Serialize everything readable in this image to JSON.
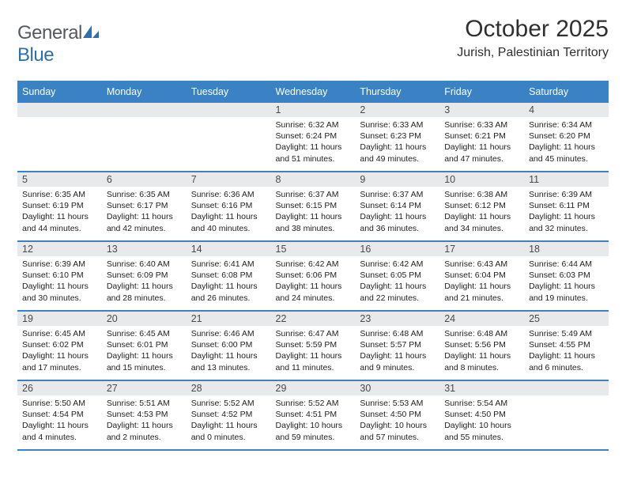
{
  "logo": {
    "text_general": "General",
    "text_blue": "Blue"
  },
  "title": "October 2025",
  "location": "Jurish, Palestinian Territory",
  "colors": {
    "header_bg": "#3b82c4",
    "header_text": "#ffffff",
    "daynum_bg": "#e8e9ea",
    "rule": "#3b82c4",
    "body_text": "#222222"
  },
  "weekdays": [
    "Sunday",
    "Monday",
    "Tuesday",
    "Wednesday",
    "Thursday",
    "Friday",
    "Saturday"
  ],
  "weeks": [
    [
      null,
      null,
      null,
      {
        "n": "1",
        "sr": "6:32 AM",
        "ss": "6:24 PM",
        "dl": "11 hours and 51 minutes."
      },
      {
        "n": "2",
        "sr": "6:33 AM",
        "ss": "6:23 PM",
        "dl": "11 hours and 49 minutes."
      },
      {
        "n": "3",
        "sr": "6:33 AM",
        "ss": "6:21 PM",
        "dl": "11 hours and 47 minutes."
      },
      {
        "n": "4",
        "sr": "6:34 AM",
        "ss": "6:20 PM",
        "dl": "11 hours and 45 minutes."
      }
    ],
    [
      {
        "n": "5",
        "sr": "6:35 AM",
        "ss": "6:19 PM",
        "dl": "11 hours and 44 minutes."
      },
      {
        "n": "6",
        "sr": "6:35 AM",
        "ss": "6:17 PM",
        "dl": "11 hours and 42 minutes."
      },
      {
        "n": "7",
        "sr": "6:36 AM",
        "ss": "6:16 PM",
        "dl": "11 hours and 40 minutes."
      },
      {
        "n": "8",
        "sr": "6:37 AM",
        "ss": "6:15 PM",
        "dl": "11 hours and 38 minutes."
      },
      {
        "n": "9",
        "sr": "6:37 AM",
        "ss": "6:14 PM",
        "dl": "11 hours and 36 minutes."
      },
      {
        "n": "10",
        "sr": "6:38 AM",
        "ss": "6:12 PM",
        "dl": "11 hours and 34 minutes."
      },
      {
        "n": "11",
        "sr": "6:39 AM",
        "ss": "6:11 PM",
        "dl": "11 hours and 32 minutes."
      }
    ],
    [
      {
        "n": "12",
        "sr": "6:39 AM",
        "ss": "6:10 PM",
        "dl": "11 hours and 30 minutes."
      },
      {
        "n": "13",
        "sr": "6:40 AM",
        "ss": "6:09 PM",
        "dl": "11 hours and 28 minutes."
      },
      {
        "n": "14",
        "sr": "6:41 AM",
        "ss": "6:08 PM",
        "dl": "11 hours and 26 minutes."
      },
      {
        "n": "15",
        "sr": "6:42 AM",
        "ss": "6:06 PM",
        "dl": "11 hours and 24 minutes."
      },
      {
        "n": "16",
        "sr": "6:42 AM",
        "ss": "6:05 PM",
        "dl": "11 hours and 22 minutes."
      },
      {
        "n": "17",
        "sr": "6:43 AM",
        "ss": "6:04 PM",
        "dl": "11 hours and 21 minutes."
      },
      {
        "n": "18",
        "sr": "6:44 AM",
        "ss": "6:03 PM",
        "dl": "11 hours and 19 minutes."
      }
    ],
    [
      {
        "n": "19",
        "sr": "6:45 AM",
        "ss": "6:02 PM",
        "dl": "11 hours and 17 minutes."
      },
      {
        "n": "20",
        "sr": "6:45 AM",
        "ss": "6:01 PM",
        "dl": "11 hours and 15 minutes."
      },
      {
        "n": "21",
        "sr": "6:46 AM",
        "ss": "6:00 PM",
        "dl": "11 hours and 13 minutes."
      },
      {
        "n": "22",
        "sr": "6:47 AM",
        "ss": "5:59 PM",
        "dl": "11 hours and 11 minutes."
      },
      {
        "n": "23",
        "sr": "6:48 AM",
        "ss": "5:57 PM",
        "dl": "11 hours and 9 minutes."
      },
      {
        "n": "24",
        "sr": "6:48 AM",
        "ss": "5:56 PM",
        "dl": "11 hours and 8 minutes."
      },
      {
        "n": "25",
        "sr": "5:49 AM",
        "ss": "4:55 PM",
        "dl": "11 hours and 6 minutes."
      }
    ],
    [
      {
        "n": "26",
        "sr": "5:50 AM",
        "ss": "4:54 PM",
        "dl": "11 hours and 4 minutes."
      },
      {
        "n": "27",
        "sr": "5:51 AM",
        "ss": "4:53 PM",
        "dl": "11 hours and 2 minutes."
      },
      {
        "n": "28",
        "sr": "5:52 AM",
        "ss": "4:52 PM",
        "dl": "11 hours and 0 minutes."
      },
      {
        "n": "29",
        "sr": "5:52 AM",
        "ss": "4:51 PM",
        "dl": "10 hours and 59 minutes."
      },
      {
        "n": "30",
        "sr": "5:53 AM",
        "ss": "4:50 PM",
        "dl": "10 hours and 57 minutes."
      },
      {
        "n": "31",
        "sr": "5:54 AM",
        "ss": "4:50 PM",
        "dl": "10 hours and 55 minutes."
      },
      null
    ]
  ],
  "labels": {
    "sunrise": "Sunrise:",
    "sunset": "Sunset:",
    "daylight": "Daylight:"
  }
}
